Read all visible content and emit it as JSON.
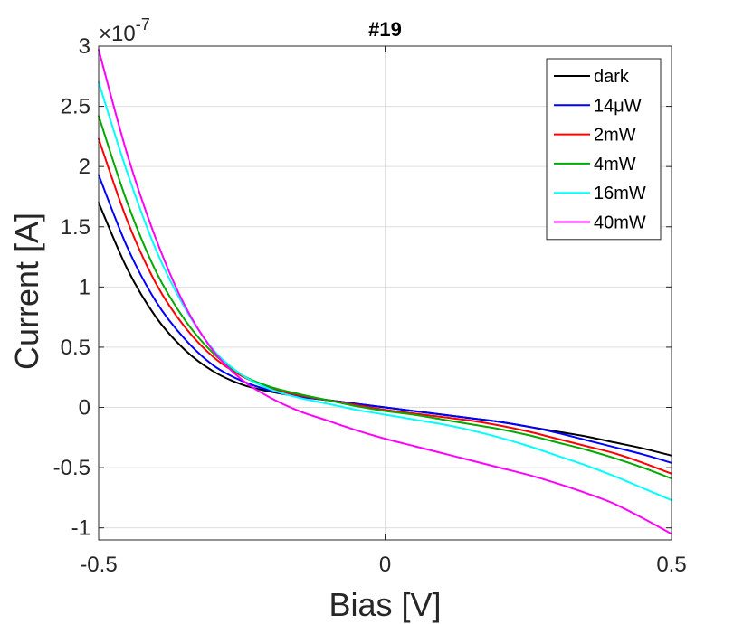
{
  "chart_data": {
    "type": "line",
    "title": "#19",
    "xlabel": "Bias [V]",
    "ylabel": "Current [A]",
    "xlim": [
      -0.5,
      0.5
    ],
    "ylim": [
      -1.1,
      3
    ],
    "y_exponent_prefix": "×10",
    "y_exponent": "-7",
    "y_scale_factor": 1e-07,
    "x_ticks": [
      -0.5,
      0,
      0.5
    ],
    "x_tick_labels": [
      "-0.5",
      "0",
      "0.5"
    ],
    "y_ticks": [
      -1,
      -0.5,
      0,
      0.5,
      1,
      1.5,
      2,
      2.5,
      3
    ],
    "y_tick_labels": [
      "-1",
      "-0.5",
      "0",
      "0.5",
      "1",
      "1.5",
      "2",
      "2.5",
      "3"
    ],
    "grid": true,
    "legend_position": "top-right",
    "x": [
      -0.5,
      -0.45,
      -0.4,
      -0.35,
      -0.3,
      -0.25,
      -0.2,
      -0.15,
      -0.1,
      -0.05,
      0,
      0.05,
      0.1,
      0.15,
      0.2,
      0.25,
      0.3,
      0.35,
      0.4,
      0.45,
      0.5
    ],
    "series": [
      {
        "name": "dark",
        "color": "#000000",
        "values": [
          1.7,
          1.15,
          0.75,
          0.48,
          0.3,
          0.19,
          0.13,
          0.09,
          0.06,
          0.03,
          0.0,
          -0.03,
          -0.06,
          -0.09,
          -0.12,
          -0.16,
          -0.2,
          -0.24,
          -0.29,
          -0.34,
          -0.4
        ]
      },
      {
        "name": "14μW",
        "color": "#0000ff",
        "values": [
          1.93,
          1.33,
          0.88,
          0.57,
          0.35,
          0.22,
          0.14,
          0.09,
          0.06,
          0.03,
          0.0,
          -0.03,
          -0.06,
          -0.09,
          -0.12,
          -0.16,
          -0.21,
          -0.27,
          -0.33,
          -0.39,
          -0.46
        ]
      },
      {
        "name": "2mW",
        "color": "#ff0000",
        "values": [
          2.23,
          1.55,
          1.03,
          0.67,
          0.42,
          0.26,
          0.16,
          0.1,
          0.06,
          0.02,
          -0.02,
          -0.05,
          -0.08,
          -0.11,
          -0.15,
          -0.2,
          -0.26,
          -0.32,
          -0.38,
          -0.46,
          -0.55
        ]
      },
      {
        "name": "4mW",
        "color": "#00aa00",
        "values": [
          2.42,
          1.7,
          1.13,
          0.73,
          0.45,
          0.27,
          0.17,
          0.11,
          0.06,
          0.01,
          -0.03,
          -0.06,
          -0.1,
          -0.14,
          -0.18,
          -0.23,
          -0.29,
          -0.35,
          -0.42,
          -0.5,
          -0.59
        ]
      },
      {
        "name": "16mW",
        "color": "#00ffff",
        "values": [
          2.7,
          1.95,
          1.31,
          0.83,
          0.48,
          0.27,
          0.15,
          0.08,
          0.03,
          -0.02,
          -0.06,
          -0.1,
          -0.14,
          -0.19,
          -0.25,
          -0.32,
          -0.4,
          -0.48,
          -0.57,
          -0.67,
          -0.77
        ]
      },
      {
        "name": "40mW",
        "color": "#ff00ff",
        "values": [
          2.97,
          2.1,
          1.4,
          0.85,
          0.47,
          0.23,
          0.08,
          -0.03,
          -0.11,
          -0.19,
          -0.26,
          -0.32,
          -0.38,
          -0.44,
          -0.5,
          -0.56,
          -0.63,
          -0.71,
          -0.8,
          -0.92,
          -1.05
        ]
      }
    ]
  }
}
